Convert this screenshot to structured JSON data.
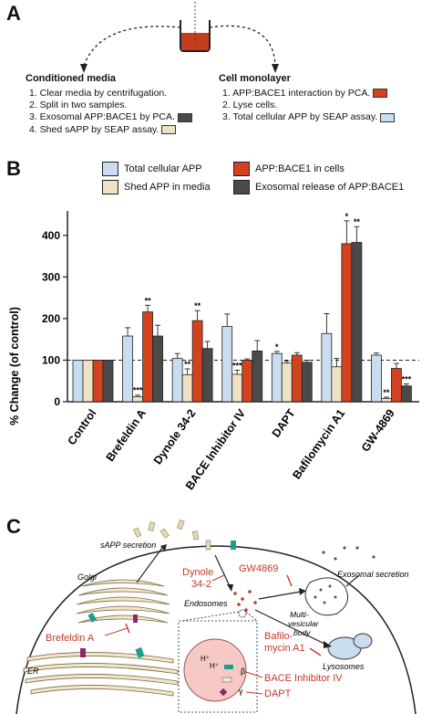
{
  "panels": {
    "a": "A",
    "b": "B",
    "c": "C"
  },
  "panel_a": {
    "conditioned_media": {
      "title": "Conditioned media",
      "steps": [
        "1.  Clear media by centrifugation.",
        "2.  Split in two samples.",
        "3.  Exosomal APP:BACE1 by PCA.",
        "4.  Shed sAPP by SEAP assay."
      ]
    },
    "cell_monolayer": {
      "title": "Cell monolayer",
      "steps": [
        "1.  APP:BACE1 interaction by PCA.",
        "2.  Lyse cells.",
        "3.  Total cellular APP by SEAP assay."
      ]
    }
  },
  "legend": {
    "total_cellular_app": "Total cellular APP",
    "app_bace1_cells": "APP:BACE1 in cells",
    "shed_app": "Shed APP in media",
    "exosomal": "Exosomal release of APP:BACE1"
  },
  "colors": {
    "total_cellular_app": "#c9dcf0",
    "shed_app": "#efe2c4",
    "app_bace1_cells": "#d2421f",
    "exosomal": "#4a4a4a",
    "annotation_red": "#c0392b",
    "cell_fill": "#f6c9c6"
  },
  "chart_data": {
    "type": "bar",
    "ylabel": "% Change (of control)",
    "ylim": [
      0,
      450
    ],
    "yticks": [
      0,
      100,
      200,
      300,
      400
    ],
    "reference_line": 100,
    "categories": [
      "Control",
      "Brefeldin A",
      "Dynole 34-2",
      "BACE Inhibitor IV",
      "DAPT",
      "Bafilomycin A1",
      "GW-4869"
    ],
    "series": [
      {
        "name": "Total cellular APP",
        "key": "total_cellular_app",
        "values": [
          100,
          158,
          104,
          181,
          116,
          164,
          112
        ],
        "errors": [
          0,
          20,
          12,
          30,
          5,
          48,
          5
        ],
        "sig": [
          "",
          "",
          "",
          "",
          "*",
          "",
          ""
        ]
      },
      {
        "name": "Shed APP in media",
        "key": "shed_app",
        "values": [
          100,
          12,
          65,
          66,
          93,
          84,
          8
        ],
        "errors": [
          0,
          4,
          14,
          10,
          5,
          20,
          3
        ],
        "sig": [
          "",
          "***",
          "**",
          "***",
          "",
          "",
          "**"
        ]
      },
      {
        "name": "APP:BACE1 in cells",
        "key": "app_bace1_cells",
        "values": [
          100,
          216,
          195,
          100,
          112,
          380,
          80
        ],
        "errors": [
          0,
          16,
          24,
          3,
          6,
          55,
          12
        ],
        "sig": [
          "",
          "**",
          "**",
          "",
          "",
          "*",
          ""
        ]
      },
      {
        "name": "Exosomal release of APP:BACE1",
        "key": "exosomal",
        "values": [
          100,
          158,
          128,
          122,
          95,
          383,
          38
        ],
        "errors": [
          0,
          26,
          17,
          25,
          5,
          38,
          5
        ],
        "sig": [
          "",
          "",
          "",
          "",
          "",
          "**",
          "***"
        ]
      }
    ]
  },
  "panel_c": {
    "sapp_secretion": "sAPP secretion",
    "dynole_1": "Dynole",
    "dynole_2": "34-2",
    "gw4869": "GW4869",
    "exosomal_secretion": "Exosomal secretion",
    "golgi": "Golgi",
    "endosomes": "Endosomes",
    "mvb_1": "Multi-",
    "mvb_2": "vesicular",
    "mvb_3": "body",
    "brefeldin": "Brefeldin A",
    "bafilo_1": "Bafilo-",
    "bafilo_2": "mycin A1",
    "lysosomes": "Lysosomes",
    "er": "ER",
    "bace_inhibitor": "BACE Inhibitor IV",
    "dapt": "DAPT",
    "h1": "H⁺",
    "h2": "H⁺",
    "beta": "β",
    "gamma": "γ"
  }
}
